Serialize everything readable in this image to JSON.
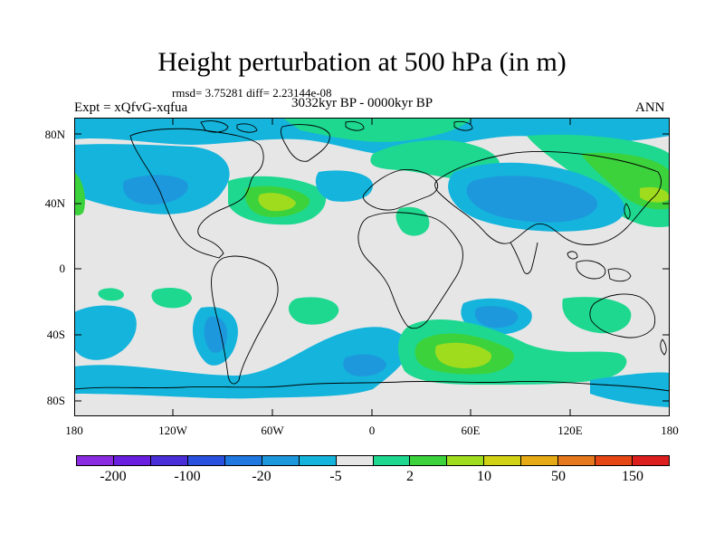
{
  "title": "Height perturbation at 500 hPa (in m)",
  "stats": "rmsd= 3.75281 diff= 2.23144e-08",
  "experiment": "Expt = xQfvG-xqfua",
  "period": "3032kyr BP - 0000kyr BP",
  "season": "ANN",
  "y_axis": {
    "labels": [
      "80N",
      "40N",
      "0",
      "40S",
      "80S"
    ]
  },
  "x_axis": {
    "labels": [
      "180",
      "120W",
      "60W",
      "0",
      "60E",
      "120E",
      "180"
    ]
  },
  "colorbar": {
    "colors": [
      "#8a2be2",
      "#6a1fe0",
      "#4a2fd8",
      "#2a50e0",
      "#1f78e0",
      "#1e98dc",
      "#14b4dc",
      "#e6e6e6",
      "#1ed890",
      "#3cd23c",
      "#a0dc1e",
      "#d2d214",
      "#e6aa14",
      "#e6781e",
      "#e64614",
      "#dc1e1e"
    ],
    "labels": [
      "-200",
      "-100",
      "-20",
      "-5",
      "2",
      "10",
      "50",
      "150"
    ]
  },
  "palette": {
    "ocean_neutral": "#e6e6e6",
    "blue_light": "#14b4dc",
    "blue_mid": "#1e98dc",
    "green": "#1ed890",
    "green_dark": "#3cd23c",
    "lime": "#a0dc1e"
  }
}
